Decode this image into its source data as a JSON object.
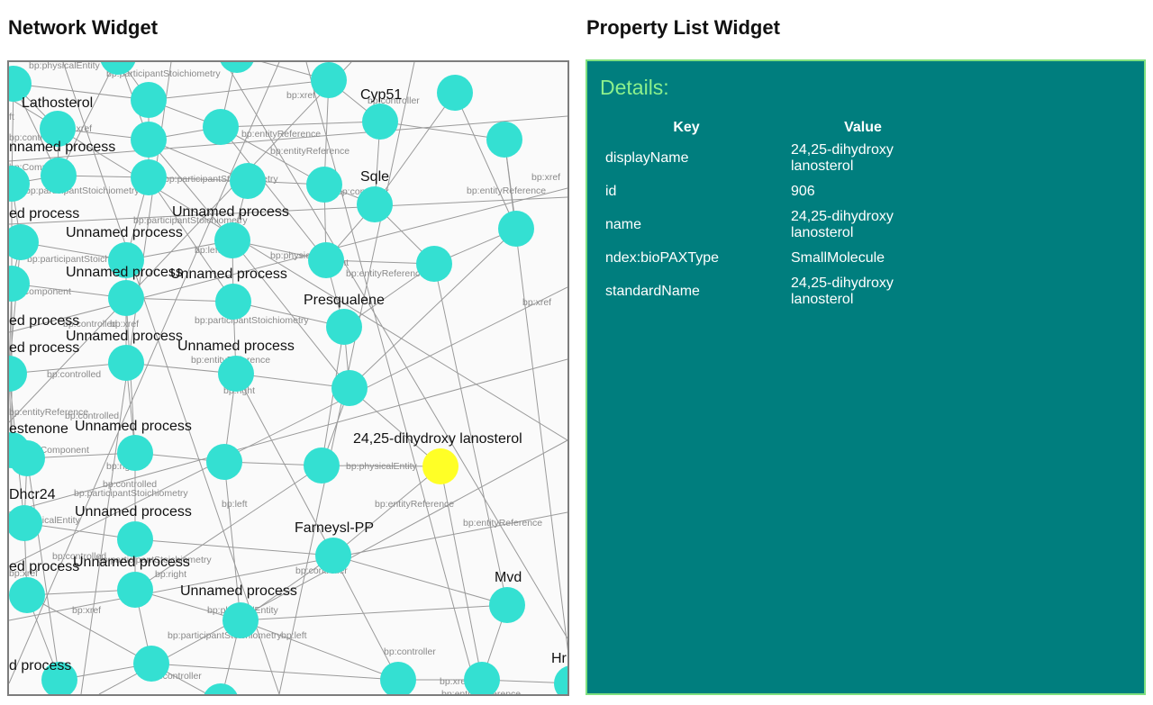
{
  "network_widget": {
    "title": "Network Widget",
    "node_labels": {
      "lathosterol": "Lathosterol",
      "cyp51": "Cyp51",
      "unnamed_process_1": "nnamed process",
      "sqle": "Sqle",
      "ed_process_1": "ed process",
      "unnamed_process_2": "Unnamed process",
      "unnamed_process_3": "Unnamed process",
      "unnamed_process_4": "Unnamed process",
      "unnamed_process_5": "Unnamed process",
      "presqualene": "Presqualene",
      "ed_process_2": "ed process",
      "ed_process_3": "ed process",
      "unnamed_process_6": "Unnamed process",
      "unnamed_process_7": "Unnamed process",
      "estenone": "estenone",
      "unnamed_process_8": "Unnamed process",
      "selected_node": "24,25-dihydroxy lanosterol",
      "dhcr24": "Dhcr24",
      "unnamed_process_9": "Unnamed process",
      "farneysl_pp": "Farneysl-PP",
      "ed_process_4": "ed process",
      "unnamed_process_10": "Unnamed process",
      "unnamed_process_11": "Unnamed process",
      "mvd": "Mvd",
      "d_process": "d process",
      "hr": "Hr"
    },
    "edge_labels": {
      "participant_entity": "bp:physicalEntity",
      "participant_stoich_1": "bp:participantStoichiometry",
      "xref_1": "bp:xref",
      "controller_1": "bp:controller",
      "ft": "ft",
      "xref_2": "bp:xref",
      "entity_ref_1": "bp:entityReference",
      "entity_ref_2": "bp:entityReference",
      "controlled_1": "bp:controlled",
      "component_1": "bp:Component",
      "stoich_2": "bp:participantStoichiometry",
      "stoich_3": "bp:participantStoichiometry",
      "controller_2": "bp:controller",
      "xref_3": "bp:xref",
      "entity_ref_3": "bp:entityReference",
      "stoich_4": "bp:participantStoichiometry",
      "left_1": "bp:left",
      "stoich_5": "bp:participantStoichiometry",
      "phys_entity_2": "bp:physicalEntity",
      "right_1": "bp:right",
      "entity_ref_4": "bp:entityReference",
      "component_2": "bp:Component",
      "xref_4": "bp:xref",
      "stoich_6": "bp:participantStoichiometry",
      "controlled_2": "bp:controlled",
      "xref_5": "bp:xref",
      "entity_ref_5": "bp:entityReference",
      "controlled_3": "bp:controlled",
      "right_2": "bp:right",
      "entity_ref_6": "bp:entityReference",
      "controlled_4": "bp:controlled",
      "component_3": "bp:Component",
      "right_3": "bp:right",
      "phys_entity_3": "bp:physicalEntity",
      "controlled_5": "bp:controlled",
      "stoich_7": "bp:participantStoichiometry",
      "left_2": "bp:left",
      "entity_ref_7": "bp:entityReference",
      "entity_ref_8": "bp:entityReference",
      "phys_entity_4": "bp:physicalEntity",
      "controlled_6": "bp:controlled",
      "stoich_8": "bp:participantStoichiometry",
      "xref_6": "bp:xref",
      "right_4": "bp:right",
      "controller_3": "bp:controller",
      "xref_7": "bp:xref",
      "phys_entity_5": "bp:physicalEntity",
      "stoich_9": "bp:participantStoichiometry",
      "left_3": "bp:left",
      "controller_4": "bp:controller",
      "controller_5": "bp:controller",
      "xref_8": "bp:xref",
      "entity_ref_9": "bp:entityReference"
    },
    "colors": {
      "node": "#34e0d2",
      "selected_node": "#ffff26",
      "edge": "#9a9a9a"
    }
  },
  "property_widget": {
    "title": "Property List Widget",
    "details_title": "Details:",
    "columns": {
      "key": "Key",
      "value": "Value"
    },
    "rows": [
      {
        "key": "displayName",
        "value": "24,25-dihydroxy lanosterol"
      },
      {
        "key": "id",
        "value": "906"
      },
      {
        "key": "name",
        "value": "24,25-dihydroxy lanosterol"
      },
      {
        "key": "ndex:bioPAXType",
        "value": "SmallMolecule"
      },
      {
        "key": "standardName",
        "value": "24,25-dihydroxy lanosterol"
      }
    ],
    "colors": {
      "background": "#007e7e",
      "border": "#7fe07f",
      "title": "#8cf08c"
    }
  }
}
